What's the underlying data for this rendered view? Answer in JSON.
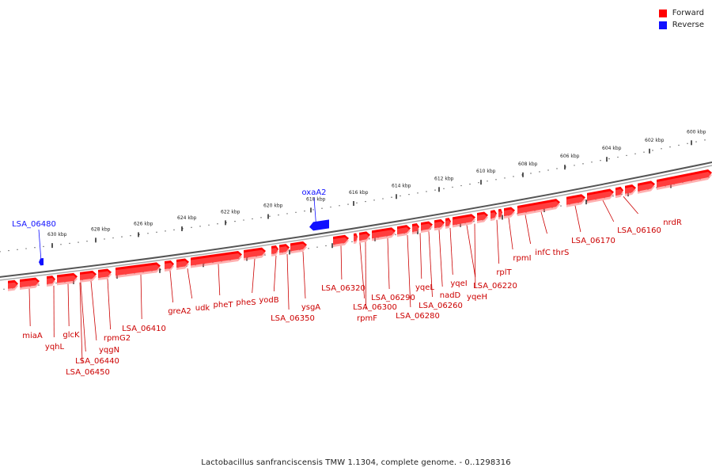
{
  "legend": {
    "forward_label": "Forward",
    "reverse_label": "Reverse",
    "forward_color": "#ff0000",
    "reverse_color": "#1010ff"
  },
  "caption": "Lactobacillus sanfranciscensis TMW 1.1304, complete genome. - 0..1298316",
  "map": {
    "unit": "kbp",
    "tick_labels": [
      "630 kbp",
      "628 kbp",
      "626 kbp",
      "624 kbp",
      "622 kbp",
      "620 kbp",
      "618 kbp",
      "616 kbp",
      "614 kbp",
      "612 kbp",
      "610 kbp",
      "608 kbp",
      "606 kbp",
      "604 kbp",
      "602 kbp",
      "600 kbp"
    ],
    "forward_genes": [
      "miaA",
      "yqhL",
      "glcK",
      "yqgN",
      "LSA_06440",
      "LSA_06450",
      "rpmG2",
      "LSA_06410",
      "greA2",
      "udk",
      "pheT",
      "pheS",
      "yodB",
      "LSA_06350",
      "ysgA",
      "LSA_06320",
      "LSA_06300",
      "rpmF",
      "LSA_06290",
      "LSA_06280",
      "yqeL",
      "LSA_06260",
      "nadD",
      "yqeI",
      "LSA_06220",
      "yqeH",
      "rplT",
      "rpmI",
      "infC",
      "thrS",
      "LSA_06170",
      "LSA_06160",
      "nrdR"
    ],
    "reverse_genes": [
      "LSA_06480",
      "oxaA2"
    ]
  }
}
